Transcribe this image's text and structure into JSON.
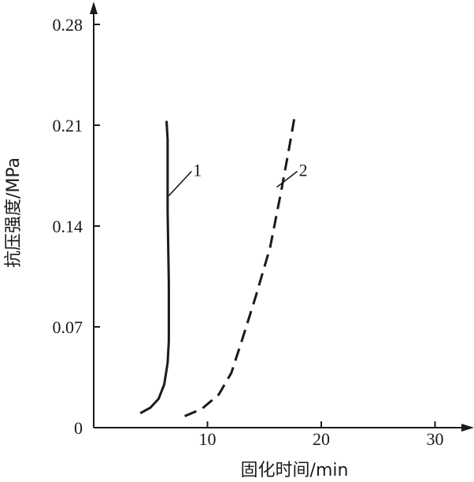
{
  "chart_data": {
    "type": "line",
    "xlabel": "固化时间/min",
    "ylabel": "抗压强度/MPa",
    "xlim": [
      0,
      32
    ],
    "ylim": [
      0,
      0.29
    ],
    "x_ticks": [
      {
        "value": 10,
        "label": "10"
      },
      {
        "value": 20,
        "label": "20"
      },
      {
        "value": 30,
        "label": "30"
      }
    ],
    "y_ticks": [
      {
        "value": 0,
        "label": "0"
      },
      {
        "value": 0.07,
        "label": "0.07"
      },
      {
        "value": 0.14,
        "label": "0.14"
      },
      {
        "value": 0.21,
        "label": "0.21"
      },
      {
        "value": 0.28,
        "label": "0.28"
      }
    ],
    "grid": false,
    "series": [
      {
        "label": "1",
        "style": "solid",
        "points": [
          [
            4.1,
            0.01
          ],
          [
            5.0,
            0.014
          ],
          [
            5.7,
            0.02
          ],
          [
            6.2,
            0.03
          ],
          [
            6.5,
            0.045
          ],
          [
            6.6,
            0.06
          ],
          [
            6.6,
            0.1
          ],
          [
            6.5,
            0.15
          ],
          [
            6.5,
            0.2
          ],
          [
            6.4,
            0.213
          ]
        ],
        "label_point": [
          6.6,
          0.161
        ],
        "label_anchor": [
          8.6,
          0.178
        ]
      },
      {
        "label": "2",
        "style": "dashed",
        "points": [
          [
            8.0,
            0.008
          ],
          [
            9.5,
            0.013
          ],
          [
            11.0,
            0.023
          ],
          [
            12.1,
            0.038
          ],
          [
            13.0,
            0.06
          ],
          [
            14.2,
            0.09
          ],
          [
            15.5,
            0.125
          ],
          [
            16.5,
            0.165
          ],
          [
            17.2,
            0.195
          ],
          [
            17.7,
            0.218
          ]
        ],
        "label_point": [
          16.1,
          0.167
        ],
        "label_anchor": [
          17.9,
          0.178
        ]
      }
    ]
  }
}
